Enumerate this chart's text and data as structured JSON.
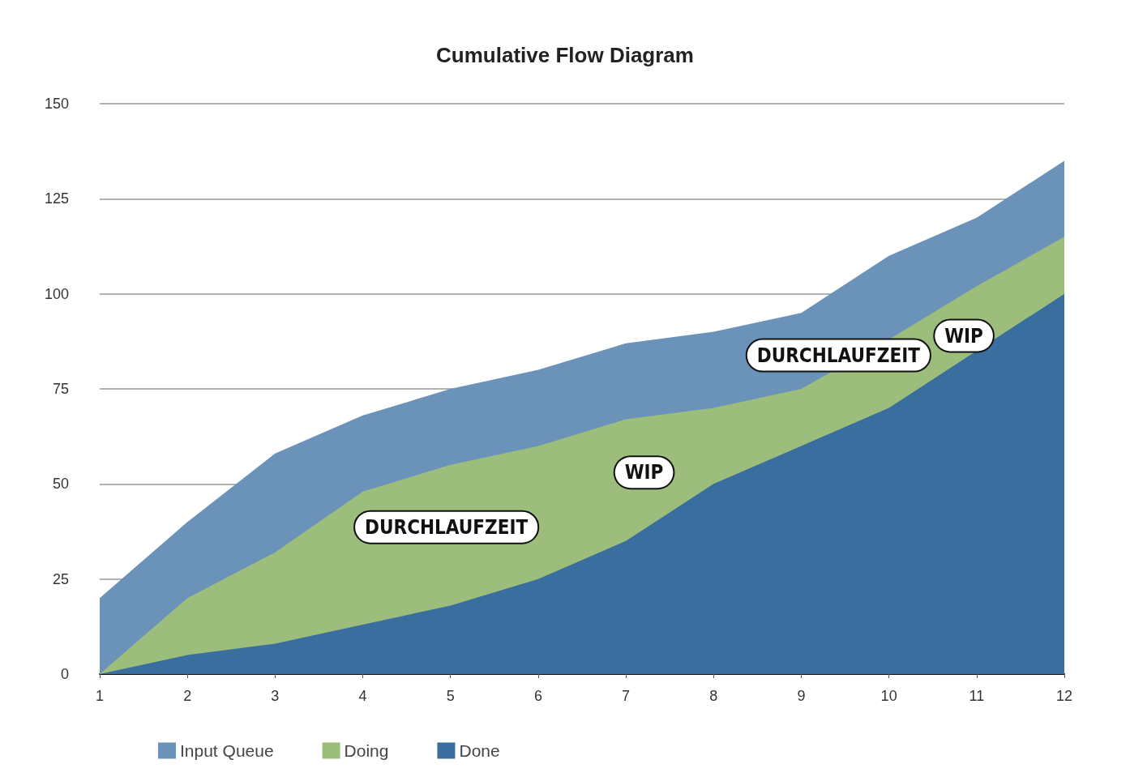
{
  "chart_data": {
    "type": "area",
    "title": "Cumulative Flow Diagram",
    "stacked": true,
    "x": [
      1,
      2,
      3,
      4,
      5,
      6,
      7,
      8,
      9,
      10,
      11,
      12
    ],
    "xlim": [
      1,
      12
    ],
    "xticks": [
      1,
      2,
      3,
      4,
      5,
      6,
      7,
      8,
      9,
      10,
      11,
      12
    ],
    "ylim": [
      0,
      150
    ],
    "yticks": [
      0,
      25,
      50,
      75,
      100,
      125,
      150
    ],
    "grid": "y",
    "legend": "bottom left",
    "marker": "none",
    "series": [
      {
        "name": "Done",
        "color": "#3a6e9e",
        "values": [
          0,
          5,
          8,
          13,
          18,
          25,
          35,
          50,
          60,
          70,
          85,
          100
        ]
      },
      {
        "name": "Doing",
        "color": "#9cbd7c",
        "values": [
          0,
          15,
          24,
          35,
          37,
          35,
          32,
          20,
          15,
          18,
          17,
          15
        ]
      },
      {
        "name": "Input Queue",
        "color": "#6b93b9",
        "values": [
          20,
          20,
          26,
          20,
          20,
          20,
          20,
          20,
          20,
          22,
          18,
          20
        ]
      }
    ],
    "annotations": [
      "DURCHLAUFZEIT",
      "WIP",
      "DURCHLAUFZEIT",
      "WIP"
    ]
  }
}
